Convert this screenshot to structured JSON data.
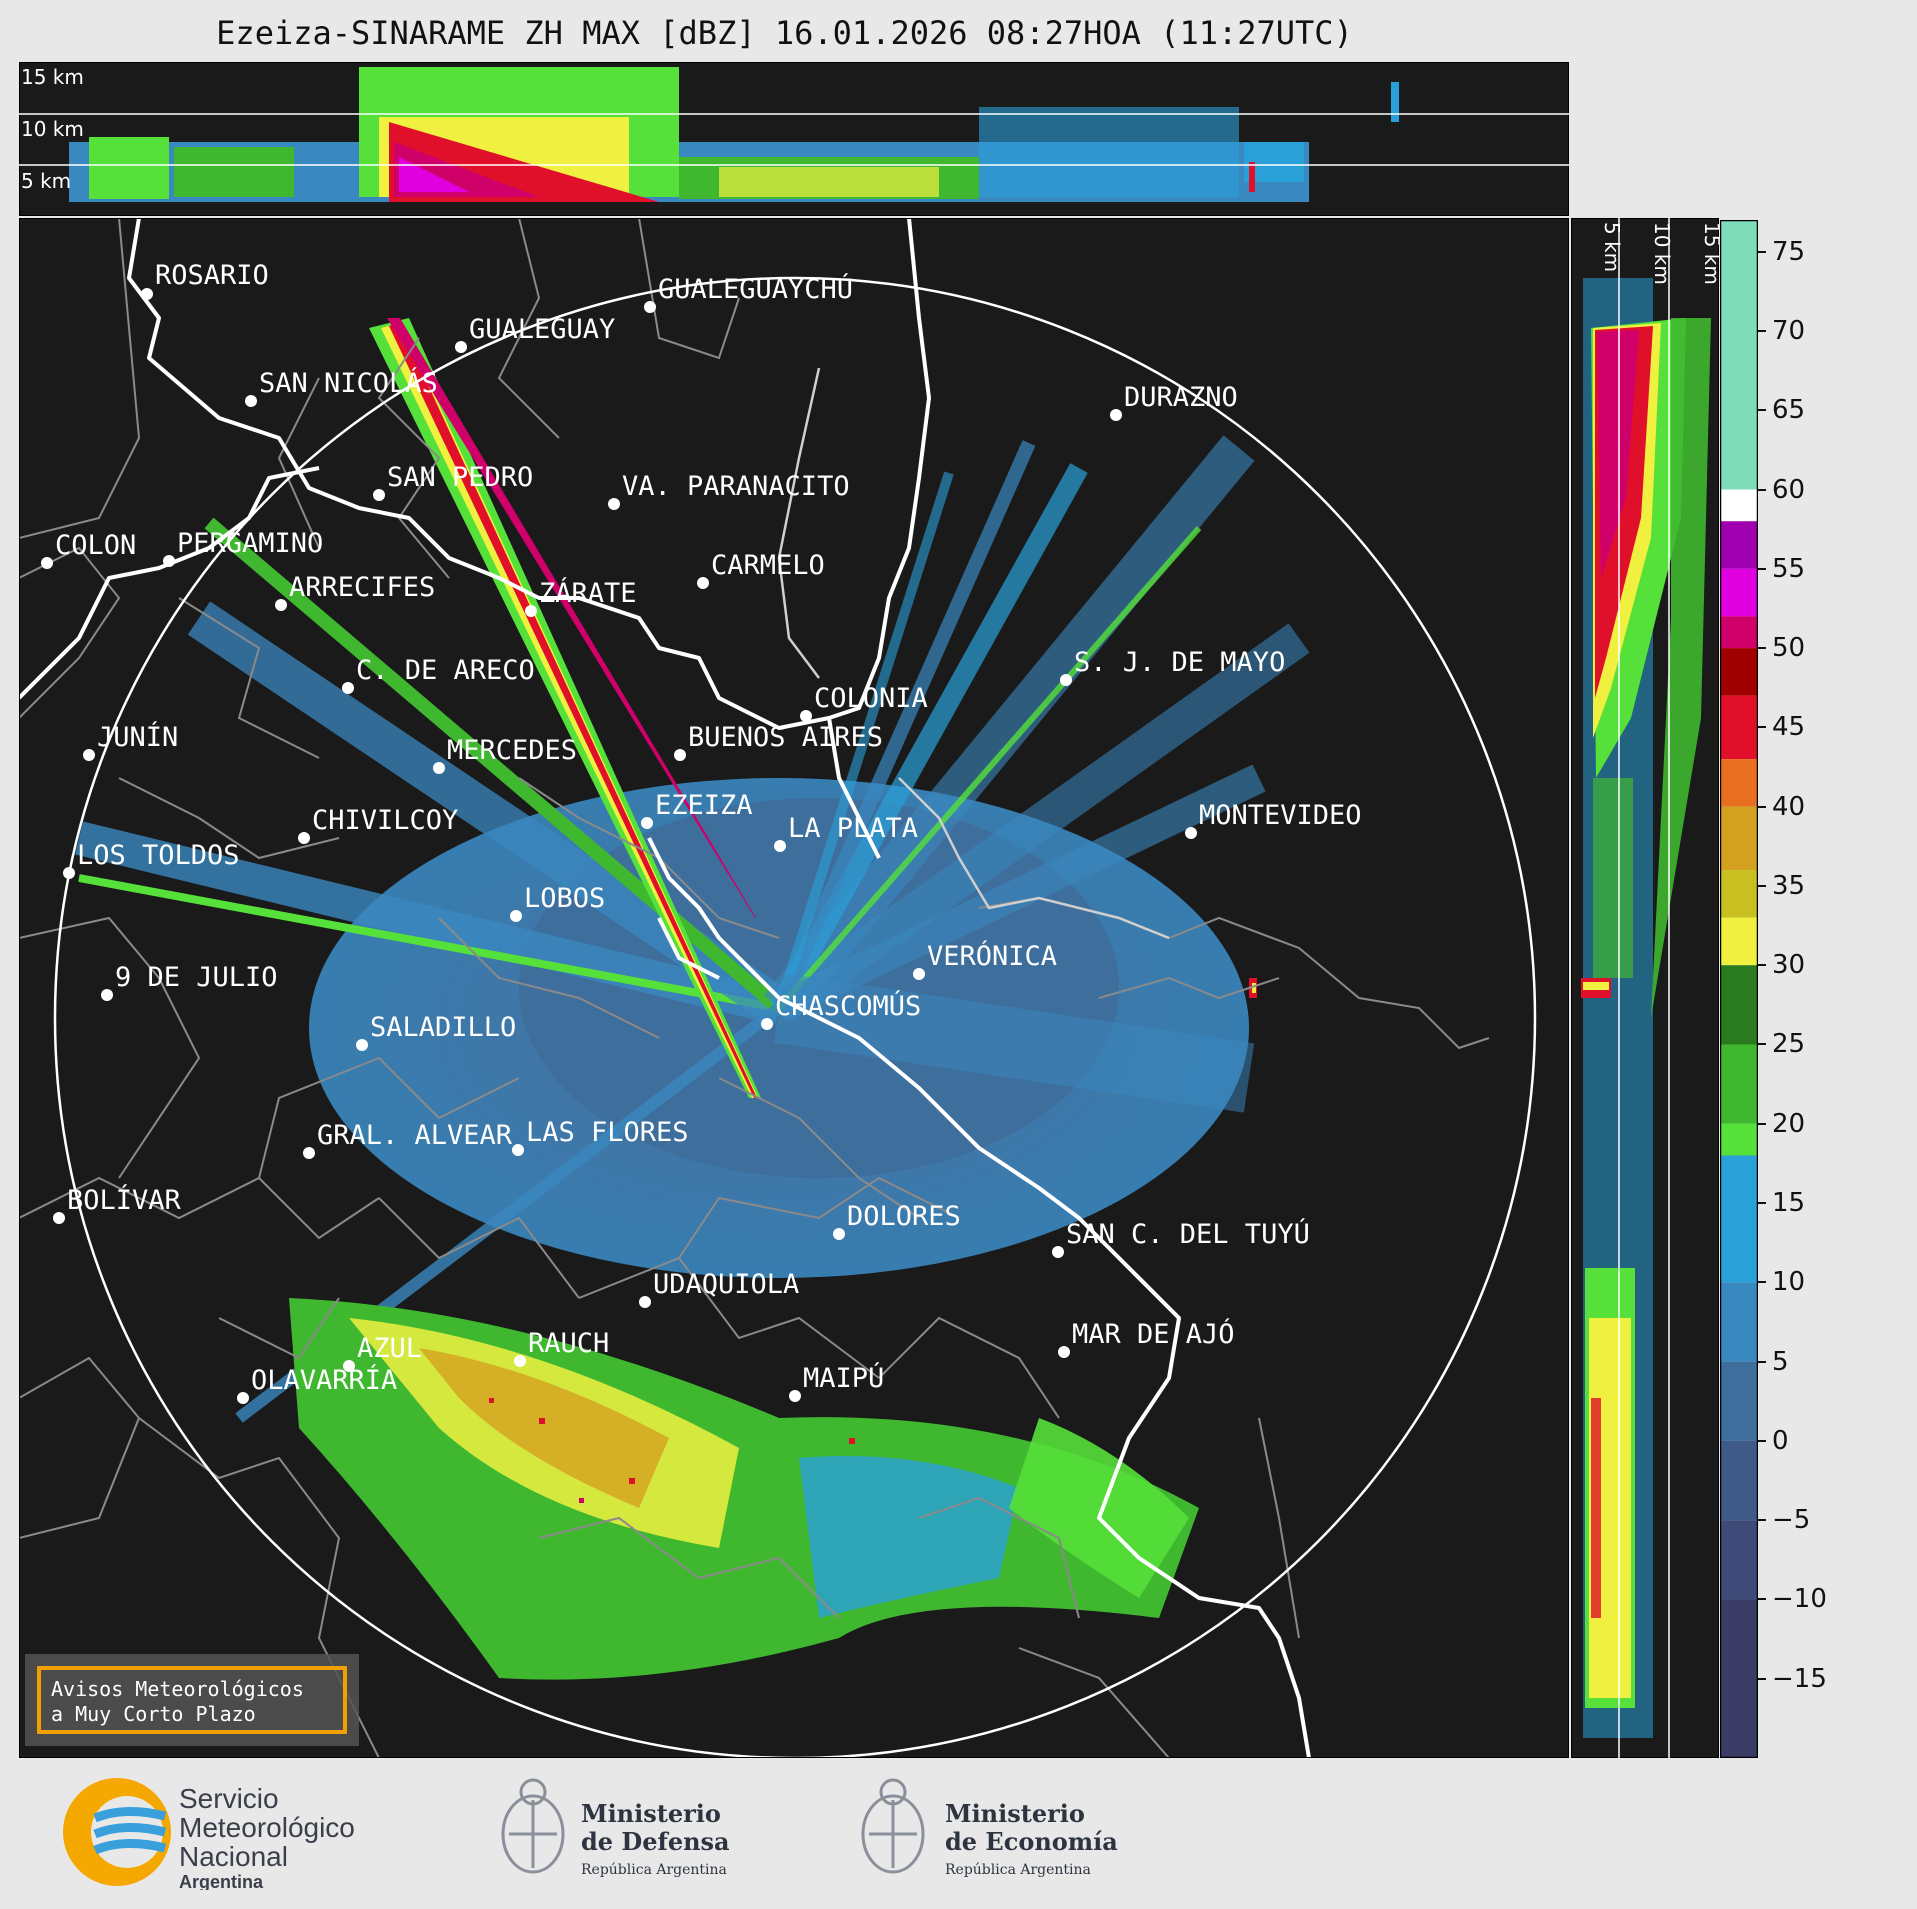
{
  "header": {
    "title": "Ezeiza-SINARAME ZH MAX [dBZ] 16.01.2026 08:27HOA (11:27UTC)"
  },
  "top_panel": {
    "height_labels": [
      "15 km",
      "10 km",
      "5 km"
    ]
  },
  "right_panel": {
    "height_labels": [
      "5 km",
      "10 km",
      "15 km"
    ]
  },
  "colorbar": {
    "unit": "dBZ",
    "ticks": [
      "75",
      "70",
      "65",
      "60",
      "55",
      "50",
      "45",
      "40",
      "35",
      "30",
      "25",
      "20",
      "15",
      "10",
      "5",
      "0",
      "−5",
      "−10",
      "−15"
    ],
    "scale": [
      {
        "min": 60,
        "max": 77,
        "color": "#7fdcb8"
      },
      {
        "min": 58,
        "max": 60,
        "color": "#ffffff"
      },
      {
        "min": 55,
        "max": 58,
        "color": "#a000b0"
      },
      {
        "min": 52,
        "max": 55,
        "color": "#e000e0"
      },
      {
        "min": 50,
        "max": 52,
        "color": "#d0006a"
      },
      {
        "min": 47,
        "max": 50,
        "color": "#a00000"
      },
      {
        "min": 43,
        "max": 47,
        "color": "#e0102a"
      },
      {
        "min": 40,
        "max": 43,
        "color": "#e87020"
      },
      {
        "min": 36,
        "max": 40,
        "color": "#d4a020"
      },
      {
        "min": 33,
        "max": 36,
        "color": "#c8c020"
      },
      {
        "min": 30,
        "max": 33,
        "color": "#f0f040"
      },
      {
        "min": 25,
        "max": 30,
        "color": "#2a7a20"
      },
      {
        "min": 20,
        "max": 25,
        "color": "#3fb830"
      },
      {
        "min": 18,
        "max": 20,
        "color": "#55e03a"
      },
      {
        "min": 10,
        "max": 18,
        "color": "#2aa0d8"
      },
      {
        "min": 5,
        "max": 10,
        "color": "#3a88c0"
      },
      {
        "min": 0,
        "max": 5,
        "color": "#3d6e9c"
      },
      {
        "min": -5,
        "max": 0,
        "color": "#405a88"
      },
      {
        "min": -10,
        "max": -5,
        "color": "#3e4a78"
      },
      {
        "min": -20,
        "max": -10,
        "color": "#3a3c66"
      }
    ]
  },
  "map": {
    "radar_site": "EZEIZA",
    "cities": [
      {
        "name": "ROSARIO"
      },
      {
        "name": "GUALEGUAYCHÚ"
      },
      {
        "name": "GUALEGUAY"
      },
      {
        "name": "SAN NICOLÁS"
      },
      {
        "name": "DURAZNO"
      },
      {
        "name": "SAN PEDRO"
      },
      {
        "name": "VA. PARANACITO"
      },
      {
        "name": "COLON"
      },
      {
        "name": "PERGAMINO"
      },
      {
        "name": "CARMELO"
      },
      {
        "name": "ARRECIFES"
      },
      {
        "name": "ZÁRATE"
      },
      {
        "name": "S. J. DE MAYO"
      },
      {
        "name": "C. DE ARECO"
      },
      {
        "name": "COLONIA"
      },
      {
        "name": "JUNÍN"
      },
      {
        "name": "BUENOS AIRES"
      },
      {
        "name": "MERCEDES"
      },
      {
        "name": "EZEIZA"
      },
      {
        "name": "MONTEVIDEO"
      },
      {
        "name": "CHIVILCOY"
      },
      {
        "name": "LA PLATA"
      },
      {
        "name": "LOS TOLDOS"
      },
      {
        "name": "LOBOS"
      },
      {
        "name": "VERÓNICA"
      },
      {
        "name": "9 DE JULIO"
      },
      {
        "name": "CHASCOMÚS"
      },
      {
        "name": "SALADILLO"
      },
      {
        "name": "GRAL. ALVEAR"
      },
      {
        "name": "LAS FLORES"
      },
      {
        "name": "BOLÍVAR"
      },
      {
        "name": "DOLORES"
      },
      {
        "name": "SAN C. DEL TUYÚ"
      },
      {
        "name": "UDAQUIOLA"
      },
      {
        "name": "RAUCH"
      },
      {
        "name": "MAR DE AJÓ"
      },
      {
        "name": "AZUL"
      },
      {
        "name": "MAIPÚ"
      },
      {
        "name": "OLAVARRÍA"
      }
    ]
  },
  "badge": {
    "line1": "Avisos Meteorológicos",
    "line2": "a Muy Corto Plazo"
  },
  "footer": {
    "smn": {
      "line1": "Servicio",
      "line2": "Meteorológico",
      "line3": "Nacional",
      "line4": "Argentina"
    },
    "defensa": {
      "line1": "Ministerio",
      "line2": "de Defensa",
      "line3": "República Argentina"
    },
    "economia": {
      "line1": "Ministerio",
      "line2": "de Economía",
      "line3": "República Argentina"
    }
  }
}
